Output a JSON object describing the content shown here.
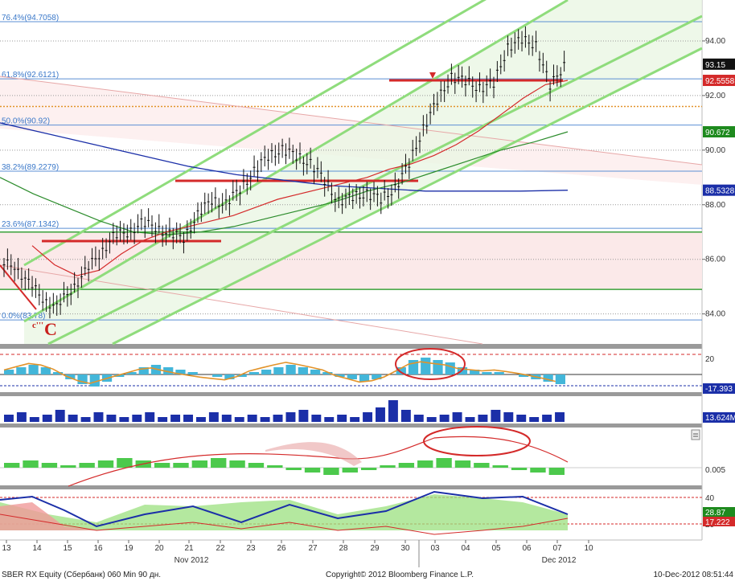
{
  "chart_data": {
    "type": "line",
    "price": {
      "ylim": [
        82.9,
        95.5
      ],
      "yticks": [
        "94.00",
        "92.00",
        "90.00",
        "88.00",
        "86.00",
        "84.00"
      ],
      "fib_levels": [
        {
          "label": "76.4%(94.7058)",
          "value": 94.7058
        },
        {
          "label": "61.8%(92.6121)",
          "value": 92.6121
        },
        {
          "label": "50.0%(90.92)",
          "value": 90.92
        },
        {
          "label": "38.2%(89.2279)",
          "value": 89.2279
        },
        {
          "label": "23.6%(87.1342)",
          "value": 87.1342
        },
        {
          "label": "0.0%(83.78)",
          "value": 83.78
        }
      ],
      "horizontal_support": [
        87.0,
        84.9
      ],
      "orange_level": 91.6,
      "badges": [
        {
          "text": "93.15",
          "value": 93.15,
          "color": "#111111"
        },
        {
          "text": "92.5558",
          "value": 92.5558,
          "color": "#d42a2a"
        },
        {
          "text": "90.672",
          "value": 90.672,
          "color": "#1e8a1e"
        },
        {
          "text": "88.5328",
          "value": 88.5328,
          "color": "#1b2fa8"
        }
      ],
      "wave_label": "C",
      "wave_label_small": "c'''",
      "close_series": [
        85.8,
        85.1,
        84.6,
        84.2,
        84.9,
        85.5,
        86.2,
        86.8,
        87.0,
        87.3,
        87.2,
        86.9,
        86.8,
        87.6,
        88.2,
        88.0,
        88.6,
        89.2,
        89.8,
        90.0,
        89.8,
        89.5,
        88.9,
        88.1,
        88.3,
        88.4,
        88.2,
        88.6,
        89.5,
        90.8,
        91.8,
        92.7,
        92.5,
        92.3,
        92.4,
        93.8,
        94.0,
        93.9,
        92.3,
        93.15
      ],
      "ma_red": [
        86.5,
        85.8,
        85.4,
        85.6,
        86.2,
        86.7,
        87.0,
        87.2,
        87.4,
        87.6,
        87.9,
        88.2,
        88.4,
        88.6,
        88.8,
        89.0,
        89.3,
        89.5,
        89.8,
        90.2,
        90.7,
        91.3,
        91.9,
        92.4,
        92.5558
      ],
      "ma_green": [
        89.0,
        88.4,
        87.9,
        87.4,
        87.0,
        86.9,
        87.0,
        87.2,
        87.5,
        87.8,
        88.1,
        88.5,
        88.8,
        89.2,
        89.6,
        90.0,
        90.3,
        90.672
      ],
      "ma_blue": [
        91.0,
        90.6,
        90.2,
        89.8,
        89.4,
        89.1,
        88.9,
        88.7,
        88.6,
        88.5,
        88.5,
        88.5,
        88.5328
      ]
    },
    "macd": {
      "levels": [
        "20"
      ],
      "badges": [
        {
          "text": "-17.393",
          "color": "#1b2fa8"
        }
      ],
      "hist": [
        2,
        3,
        4,
        3,
        1,
        -2,
        -4,
        -5,
        -3,
        -1,
        1,
        3,
        4,
        3,
        2,
        1,
        0,
        -1,
        -2,
        -1,
        1,
        2,
        3,
        4,
        3,
        2,
        1,
        -1,
        -2,
        -3,
        -2,
        0,
        3,
        6,
        7,
        6,
        5,
        3,
        2,
        1,
        1,
        0,
        -1,
        -2,
        -3,
        -4
      ]
    },
    "volume": {
      "badges": [
        {
          "text": "13.624M",
          "color": "#1b2fa8"
        }
      ],
      "bars": [
        3,
        4,
        2,
        3,
        5,
        3,
        2,
        4,
        3,
        2,
        3,
        4,
        2,
        3,
        3,
        2,
        4,
        3,
        2,
        3,
        2,
        3,
        4,
        5,
        3,
        2,
        3,
        2,
        4,
        6,
        9,
        5,
        3,
        2,
        3,
        4,
        2,
        3,
        5,
        4,
        3,
        2,
        3,
        4
      ]
    },
    "dmi": {
      "badges": [
        {
          "text": "0.005",
          "color": "#111111"
        }
      ],
      "hist": [
        2,
        3,
        2,
        1,
        2,
        3,
        4,
        3,
        2,
        2,
        3,
        4,
        3,
        2,
        1,
        -1,
        -2,
        -3,
        -2,
        -1,
        1,
        2,
        3,
        4,
        3,
        2,
        1,
        -1,
        -2,
        -3
      ]
    },
    "oscillator": {
      "levels": [
        "40",
        "20"
      ],
      "badges": [
        {
          "text": "28.87",
          "color": "#1e8a1e"
        },
        {
          "text": "17.222",
          "color": "#d42a2a"
        }
      ]
    },
    "x_ticks": [
      "13",
      "14",
      "15",
      "16",
      "19",
      "20",
      "21",
      "22",
      "23",
      "26",
      "27",
      "28",
      "29",
      "30",
      "03",
      "04",
      "05",
      "06",
      "07",
      "10"
    ],
    "month_labels": [
      {
        "text": "Nov 2012",
        "after_tick": 5
      },
      {
        "text": "Dec 2012",
        "after_tick": 17
      }
    ]
  },
  "footer": {
    "left": "SBER RX Equity (Сбербанк) 060 Min 90 дн.",
    "center": "Copyright© 2012 Bloomberg Finance L.P.",
    "right": "10-Dec-2012 08:51:44"
  }
}
